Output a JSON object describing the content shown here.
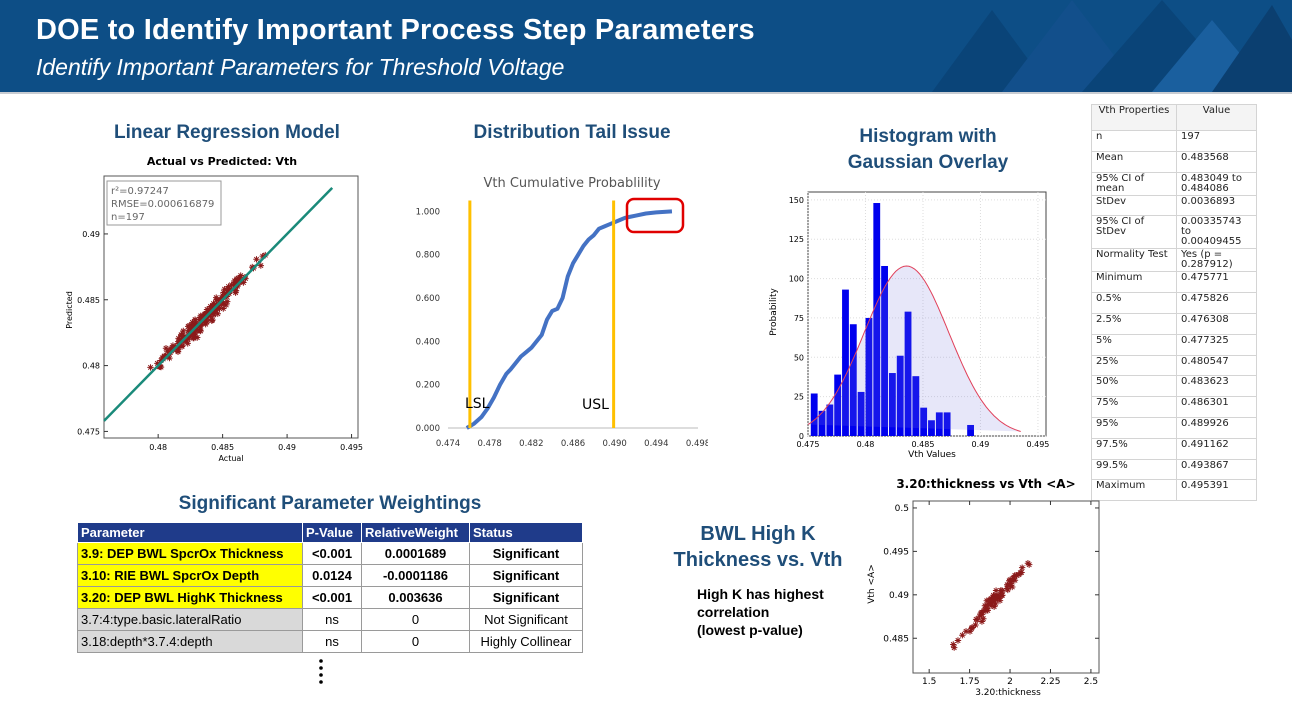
{
  "header": {
    "title": "DOE to Identify Important Process Step Parameters",
    "subtitle": "Identify Important Parameters for Threshold Voltage"
  },
  "colors": {
    "banner": "#0d4e86",
    "section_title": "#1f4e79",
    "table_header": "#1f3b8a",
    "highlight": "#ffff00",
    "fit_line": "#1a8a7a",
    "points": "#8b1a1a",
    "curve": "#4472c4",
    "spec_line": "#ffc000",
    "bars": "#0000ee"
  },
  "sections": {
    "regression": "Linear Regression Model",
    "tail": "Distribution Tail Issue",
    "histogram_line1": "Histogram with",
    "histogram_line2": "Gaussian Overlay",
    "weightings": "Significant Parameter Weightings",
    "bwl_line1": "BWL High K",
    "bwl_line2": "Thickness vs. Vth"
  },
  "note": {
    "line1": "High K has highest",
    "line2": "correlation",
    "line3": "(lowest p-value)"
  },
  "regression_chart": {
    "title": "Actual vs Predicted: Vth",
    "xlabel": "Actual",
    "ylabel": "Predicted",
    "stats": [
      "r²=0.97247",
      "RMSE=0.000616879",
      "n=197"
    ],
    "xticks": [
      "0.48",
      "0.485",
      "0.49",
      "0.495"
    ],
    "yticks": [
      "0.475",
      "0.48",
      "0.485",
      "0.49"
    ]
  },
  "tail_chart": {
    "title": "Vth Cumulative Probablility",
    "xticks": [
      "0.474",
      "0.478",
      "0.482",
      "0.486",
      "0.490",
      "0.494",
      "0.498"
    ],
    "yticks": [
      "0.000",
      "0.200",
      "0.400",
      "0.600",
      "0.800",
      "1.000"
    ],
    "lsl_label": "LSL",
    "usl_label": "USL",
    "lsl": 0.4761,
    "usl": 0.4899
  },
  "histogram_chart": {
    "xlabel": "Vth Values",
    "ylabel": "Probability",
    "xticks": [
      "0.475",
      "0.48",
      "0.485",
      "0.49",
      "0.495"
    ],
    "yticks": [
      "0",
      "25",
      "50",
      "75",
      "100",
      "125",
      "150"
    ]
  },
  "scatter_chart": {
    "title": "3.20:thickness vs Vth <A>",
    "xlabel": "3.20:thickness",
    "ylabel": "Vth <A>",
    "xticks": [
      "1.5",
      "1.75",
      "2",
      "2.25",
      "2.5"
    ],
    "yticks": [
      "0.485",
      "0.49",
      "0.495",
      "0.5"
    ]
  },
  "properties": {
    "headers": [
      "Vth Properties",
      "Value"
    ],
    "rows": [
      [
        "n",
        "197"
      ],
      [
        "Mean",
        "0.483568"
      ],
      [
        "95% CI of mean",
        "0.483049 to 0.484086"
      ],
      [
        "StDev",
        "0.0036893"
      ],
      [
        "95% CI of StDev",
        "0.00335743 to 0.00409455"
      ],
      [
        "Normality Test",
        "Yes (p = 0.287912)"
      ],
      [
        "Minimum",
        "0.475771"
      ],
      [
        "0.5%",
        "0.475826"
      ],
      [
        "2.5%",
        "0.476308"
      ],
      [
        "5%",
        "0.477325"
      ],
      [
        "25%",
        "0.480547"
      ],
      [
        "50%",
        "0.483623"
      ],
      [
        "75%",
        "0.486301"
      ],
      [
        "95%",
        "0.489926"
      ],
      [
        "97.5%",
        "0.491162"
      ],
      [
        "99.5%",
        "0.493867"
      ],
      [
        "Maximum",
        "0.495391"
      ]
    ]
  },
  "weightings": {
    "headers": [
      "Parameter",
      "P-Value",
      "RelativeWeight",
      "Status"
    ],
    "rows": [
      {
        "param": "3.9: DEP BWL SpcrOx Thickness",
        "p": "<0.001",
        "w": "0.0001689",
        "status": "Significant",
        "kind": "sig"
      },
      {
        "param": "3.10: RIE BWL SpcrOx Depth",
        "p": "0.0124",
        "w": "-0.0001186",
        "status": "Significant",
        "kind": "sig"
      },
      {
        "param": "3.20: DEP BWL HighK Thickness",
        "p": "<0.001",
        "w": "0.003636",
        "status": "Significant",
        "kind": "sig"
      },
      {
        "param": "3.7:4:type.basic.lateralRatio",
        "p": "ns",
        "w": "0",
        "status": "Not Significant",
        "kind": "ns"
      },
      {
        "param": "3.18:depth*3.7.4:depth",
        "p": "ns",
        "w": "0",
        "status": "Highly Collinear",
        "kind": "ns"
      }
    ]
  },
  "chart_data": [
    {
      "type": "scatter",
      "title": "Actual vs Predicted: Vth",
      "xlabel": "Actual",
      "ylabel": "Predicted",
      "xlim": [
        0.4758,
        0.4955
      ],
      "ylim": [
        0.4745,
        0.4944
      ],
      "fit": {
        "slope": 1,
        "intercept": 0
      },
      "annotations": [
        "r²=0.97247",
        "RMSE=0.000616879",
        "n=197"
      ]
    },
    {
      "type": "line",
      "title": "Vth Cumulative Probablility",
      "xlim": [
        0.474,
        0.498
      ],
      "ylim": [
        0,
        1.08
      ],
      "x": [
        0.4758,
        0.4765,
        0.4772,
        0.4778,
        0.4784,
        0.479,
        0.4796,
        0.48,
        0.4805,
        0.481,
        0.4815,
        0.482,
        0.4825,
        0.483,
        0.4835,
        0.484,
        0.4845,
        0.485,
        0.4855,
        0.486,
        0.4865,
        0.487,
        0.4875,
        0.488,
        0.4885,
        0.489,
        0.4895,
        0.49,
        0.4905,
        0.491,
        0.4915,
        0.492,
        0.493,
        0.494,
        0.4955
      ],
      "y": [
        0.0,
        0.02,
        0.05,
        0.09,
        0.14,
        0.2,
        0.25,
        0.27,
        0.3,
        0.33,
        0.35,
        0.37,
        0.4,
        0.43,
        0.5,
        0.54,
        0.55,
        0.6,
        0.7,
        0.76,
        0.8,
        0.84,
        0.87,
        0.89,
        0.92,
        0.93,
        0.94,
        0.95,
        0.96,
        0.97,
        0.975,
        0.98,
        0.99,
        0.995,
        1.0
      ],
      "lsl": 0.4761,
      "usl": 0.4899
    },
    {
      "type": "bar",
      "title": "",
      "xlabel": "Vth Values",
      "ylabel": "Probability",
      "xlim": [
        0.475,
        0.4957
      ],
      "ylim": [
        0,
        155
      ],
      "bin_start": 0.4752,
      "bin_width": 0.00068,
      "values": [
        27,
        16,
        20,
        39,
        93,
        71,
        28,
        75,
        148,
        108,
        40,
        51,
        79,
        38,
        18,
        10,
        15,
        15,
        0,
        0,
        7
      ],
      "gaussian": {
        "mean": 0.483568,
        "stdev": 0.0036893,
        "peak": 108
      }
    },
    {
      "type": "scatter",
      "title": "3.20:thickness vs Vth <A>",
      "xlabel": "3.20:thickness",
      "ylabel": "Vth <A>",
      "xlim": [
        1.4,
        2.55
      ],
      "ylim": [
        0.481,
        0.5008
      ],
      "trend": {
        "x0": 1.5,
        "y0": 0.4815,
        "x1": 2.45,
        "y1": 0.5
      }
    }
  ]
}
